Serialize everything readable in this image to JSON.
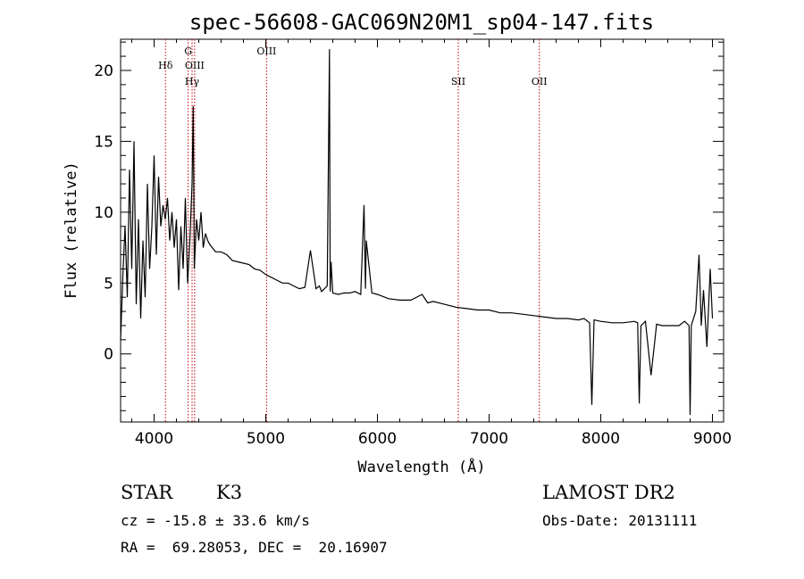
{
  "chart_data": {
    "type": "line",
    "title": "spec-56608-GAC069N20M1_sp04-147.fits",
    "xlabel": "Wavelength (Å)",
    "ylabel": "Flux (relative)",
    "xlim": [
      3700,
      9100
    ],
    "ylim": [
      -4.8,
      22.2
    ],
    "xticks": [
      4000,
      5000,
      6000,
      7000,
      8000,
      9000
    ],
    "yticks": [
      0,
      5,
      10,
      15,
      20
    ],
    "grid": false,
    "series": [
      {
        "x": [
          3700,
          3720,
          3740,
          3760,
          3780,
          3800,
          3820,
          3840,
          3860,
          3880,
          3900,
          3920,
          3940,
          3960,
          3980,
          4000,
          4020,
          4040,
          4060,
          4080,
          4100,
          4120,
          4140,
          4160,
          4180,
          4200,
          4220,
          4240,
          4260,
          4280,
          4300,
          4320,
          4340,
          4350,
          4360,
          4380,
          4400,
          4420,
          4440,
          4460,
          4480,
          4500,
          4550,
          4600,
          4650,
          4700,
          4750,
          4800,
          4850,
          4900,
          4950,
          5000,
          5050,
          5100,
          5150,
          5200,
          5250,
          5300,
          5350,
          5400,
          5450,
          5480,
          5500,
          5550,
          5570,
          5577,
          5585,
          5600,
          5650,
          5700,
          5750,
          5800,
          5850,
          5880,
          5893,
          5900,
          5950,
          6000,
          6100,
          6200,
          6300,
          6400,
          6450,
          6500,
          6600,
          6700,
          6800,
          6900,
          7000,
          7100,
          7200,
          7300,
          7400,
          7500,
          7600,
          7700,
          7800,
          7850,
          7900,
          7920,
          7940,
          8000,
          8100,
          8200,
          8300,
          8330,
          8345,
          8360,
          8400,
          8450,
          8500,
          8550,
          8600,
          8700,
          8750,
          8790,
          8800,
          8810,
          8850,
          8880,
          8900,
          8920,
          8950,
          8980,
          9000
        ],
        "y": [
          1.0,
          5.5,
          9.0,
          4.0,
          13.0,
          6.0,
          15.0,
          3.5,
          9.5,
          2.5,
          8.0,
          4.0,
          12.0,
          6.0,
          9.0,
          14.0,
          7.0,
          12.5,
          9.0,
          10.5,
          9.5,
          11.0,
          8.0,
          10.0,
          7.5,
          9.5,
          4.5,
          9.0,
          6.0,
          11.0,
          5.0,
          8.0,
          12.0,
          17.5,
          6.0,
          9.5,
          8.0,
          10.0,
          7.5,
          8.5,
          8.0,
          7.7,
          7.2,
          7.2,
          7.0,
          6.6,
          6.5,
          6.4,
          6.3,
          6.0,
          5.9,
          5.6,
          5.4,
          5.2,
          5.0,
          5.0,
          4.8,
          4.6,
          4.7,
          7.3,
          4.6,
          4.8,
          4.4,
          4.8,
          21.5,
          4.4,
          6.5,
          4.3,
          4.2,
          4.3,
          4.3,
          4.4,
          4.2,
          10.5,
          4.6,
          8.0,
          4.3,
          4.2,
          3.9,
          3.8,
          3.8,
          4.2,
          3.6,
          3.7,
          3.5,
          3.3,
          3.2,
          3.1,
          3.1,
          2.9,
          2.9,
          2.8,
          2.7,
          2.6,
          2.5,
          2.5,
          2.4,
          2.5,
          2.2,
          -3.6,
          2.4,
          2.3,
          2.2,
          2.2,
          2.3,
          2.2,
          -3.5,
          2.0,
          2.3,
          -1.5,
          2.1,
          2.0,
          2.0,
          2.0,
          2.3,
          2.0,
          -4.3,
          2.0,
          3.0,
          7.0,
          2.0,
          4.5,
          0.5,
          6.0,
          2.5
        ]
      }
    ],
    "annotations": [
      {
        "x": 4102,
        "label": "Hδ",
        "tier": 2
      },
      {
        "x": 4305,
        "label": "G",
        "tier": 1
      },
      {
        "x": 4340,
        "label": "Hγ",
        "tier": 3
      },
      {
        "x": 4363,
        "label": "OIII",
        "tier": 2
      },
      {
        "x": 5007,
        "label": "OIII",
        "tier": 1
      },
      {
        "x": 6724,
        "label": "SII",
        "tier": 3
      },
      {
        "x": 7450,
        "label": "OII",
        "tier": 3
      }
    ]
  },
  "info": {
    "object_class": "STAR",
    "subclass": "K3",
    "survey": "LAMOST DR2",
    "redshift": "cz = -15.8 ± 33.6 km/s",
    "obs_date": "Obs-Date: 20131111",
    "coords": "RA =  69.28053, DEC =  20.16907"
  },
  "colors": {
    "annotation_line": "#c00000",
    "axis": "#000000",
    "spectrum": "#000000"
  }
}
